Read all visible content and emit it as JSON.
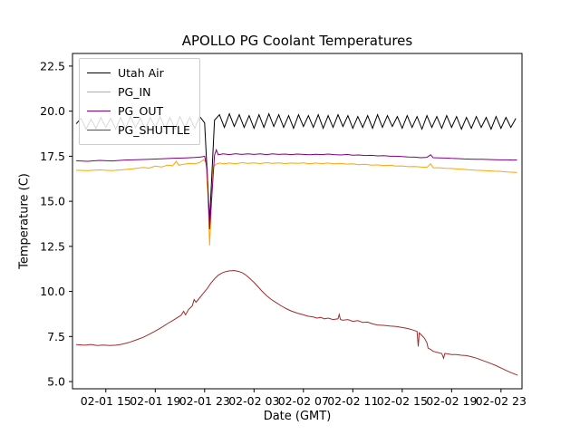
{
  "chart_data": {
    "type": "line",
    "title": "APOLLO PG Coolant Temperatures",
    "xlabel": "Date (GMT)",
    "ylabel": "Temperature (C)",
    "grid": false,
    "legend_position": "upper left",
    "x_unit": "hours since 02-01 13:00 GMT",
    "xlim": [
      -0.7,
      35.7
    ],
    "ylim": [
      4.6,
      23.2
    ],
    "yticks": [
      "5.0",
      "7.5",
      "10.0",
      "12.5",
      "15.0",
      "17.5",
      "20.0",
      "22.5"
    ],
    "ytick_values": [
      5.0,
      7.5,
      10.0,
      12.5,
      15.0,
      17.5,
      20.0,
      22.5
    ],
    "xtick_values": [
      2,
      6,
      10,
      14,
      18,
      22,
      26,
      30,
      34
    ],
    "xtick_labels": [
      "02-01 15",
      "02-01 19",
      "02-01 23",
      "02-02 03",
      "02-02 07",
      "02-02 11",
      "02-02 15",
      "02-02 19",
      "02-02 23"
    ],
    "series": [
      {
        "name": "Utah Air",
        "color": "#000000",
        "t0": -0.4,
        "dt": 0.4,
        "y": [
          19.3,
          19.6,
          19.0,
          19.55,
          19.05,
          19.65,
          19.1,
          19.6,
          19.0,
          19.65,
          19.05,
          19.7,
          19.1,
          19.6,
          19.0,
          19.65,
          19.1,
          19.7,
          19.05,
          19.65,
          19.0,
          19.7,
          19.1,
          19.65,
          19.05,
          19.7,
          19.35,
          13.9,
          19.5,
          19.8,
          19.1,
          19.85,
          19.15,
          19.8,
          19.1,
          19.75,
          19.05,
          19.8,
          19.1,
          19.85,
          19.15,
          19.8,
          19.1,
          19.75,
          19.05,
          19.8,
          19.15,
          19.75,
          19.1,
          19.8,
          19.05,
          19.75,
          19.1,
          19.8,
          19.15,
          19.75,
          19.05,
          19.7,
          19.1,
          19.75,
          19.05,
          19.8,
          19.1,
          19.75,
          19.15,
          19.7,
          19.05,
          19.75,
          19.1,
          19.7,
          19.0,
          19.75,
          19.1,
          19.7,
          19.05,
          19.75,
          19.1,
          19.7,
          19.0,
          19.65,
          19.05,
          19.7,
          19.1,
          19.65,
          19.0,
          19.7,
          19.05,
          19.65,
          19.1,
          19.6
        ]
      },
      {
        "name": "PG_IN",
        "color": "#ffa500",
        "points": [
          [
            -0.4,
            16.72
          ],
          [
            0.5,
            16.7
          ],
          [
            1.5,
            16.74
          ],
          [
            2.5,
            16.7
          ],
          [
            3.5,
            16.76
          ],
          [
            4.2,
            16.8
          ],
          [
            5,
            16.88
          ],
          [
            5.5,
            16.84
          ],
          [
            6,
            16.95
          ],
          [
            6.5,
            16.9
          ],
          [
            7,
            17.0
          ],
          [
            7.4,
            16.97
          ],
          [
            7.7,
            17.22
          ],
          [
            7.9,
            17.0
          ],
          [
            8.3,
            17.05
          ],
          [
            8.8,
            17.1
          ],
          [
            9.2,
            17.08
          ],
          [
            9.6,
            17.15
          ],
          [
            9.9,
            17.3
          ],
          [
            10.1,
            17.2
          ],
          [
            10.25,
            15.5
          ],
          [
            10.4,
            12.55
          ],
          [
            10.55,
            14.8
          ],
          [
            10.7,
            16.9
          ],
          [
            10.9,
            17.05
          ],
          [
            11.2,
            17.12
          ],
          [
            11.6,
            17.08
          ],
          [
            12,
            17.12
          ],
          [
            12.5,
            17.08
          ],
          [
            13,
            17.14
          ],
          [
            13.5,
            17.1
          ],
          [
            14,
            17.13
          ],
          [
            14.5,
            17.09
          ],
          [
            15,
            17.14
          ],
          [
            15.5,
            17.1
          ],
          [
            16,
            17.13
          ],
          [
            16.5,
            17.09
          ],
          [
            17,
            17.12
          ],
          [
            17.5,
            17.1
          ],
          [
            18,
            17.13
          ],
          [
            18.5,
            17.08
          ],
          [
            19,
            17.12
          ],
          [
            19.5,
            17.09
          ],
          [
            20,
            17.12
          ],
          [
            20.5,
            17.08
          ],
          [
            21,
            17.1
          ],
          [
            21.5,
            17.06
          ],
          [
            22,
            17.08
          ],
          [
            22.5,
            17.03
          ],
          [
            23,
            17.05
          ],
          [
            23.5,
            17.0
          ],
          [
            24,
            17.02
          ],
          [
            24.5,
            16.98
          ],
          [
            25,
            17.0
          ],
          [
            25.5,
            16.95
          ],
          [
            26,
            16.96
          ],
          [
            26.5,
            16.92
          ],
          [
            27,
            16.93
          ],
          [
            27.5,
            16.9
          ],
          [
            28,
            16.88
          ],
          [
            28.3,
            17.08
          ],
          [
            28.5,
            16.86
          ],
          [
            29,
            16.86
          ],
          [
            29.5,
            16.83
          ],
          [
            30,
            16.82
          ],
          [
            30.5,
            16.79
          ],
          [
            31,
            16.77
          ],
          [
            31.5,
            16.74
          ],
          [
            32,
            16.72
          ],
          [
            32.5,
            16.71
          ],
          [
            33,
            16.69
          ],
          [
            33.5,
            16.67
          ],
          [
            34,
            16.66
          ],
          [
            34.5,
            16.63
          ],
          [
            35,
            16.61
          ],
          [
            35.3,
            16.6
          ]
        ]
      },
      {
        "name": "PG_OUT",
        "color": "#800080",
        "points": [
          [
            -0.4,
            17.25
          ],
          [
            0.5,
            17.22
          ],
          [
            1.5,
            17.27
          ],
          [
            2.5,
            17.24
          ],
          [
            3.5,
            17.29
          ],
          [
            4.5,
            17.31
          ],
          [
            5.5,
            17.33
          ],
          [
            6.5,
            17.36
          ],
          [
            7.5,
            17.39
          ],
          [
            8.5,
            17.41
          ],
          [
            9.2,
            17.43
          ],
          [
            9.7,
            17.46
          ],
          [
            10.0,
            17.5
          ],
          [
            10.2,
            16.8
          ],
          [
            10.4,
            13.45
          ],
          [
            10.6,
            15.5
          ],
          [
            10.8,
            17.55
          ],
          [
            10.95,
            17.85
          ],
          [
            11.1,
            17.58
          ],
          [
            11.5,
            17.63
          ],
          [
            12,
            17.59
          ],
          [
            12.5,
            17.64
          ],
          [
            13,
            17.6
          ],
          [
            13.5,
            17.63
          ],
          [
            14,
            17.6
          ],
          [
            14.5,
            17.63
          ],
          [
            15,
            17.59
          ],
          [
            15.5,
            17.63
          ],
          [
            16,
            17.6
          ],
          [
            16.5,
            17.62
          ],
          [
            17,
            17.59
          ],
          [
            17.5,
            17.62
          ],
          [
            18,
            17.6
          ],
          [
            18.5,
            17.58
          ],
          [
            19,
            17.61
          ],
          [
            19.5,
            17.59
          ],
          [
            20,
            17.62
          ],
          [
            20.5,
            17.59
          ],
          [
            21,
            17.57
          ],
          [
            21.5,
            17.6
          ],
          [
            22,
            17.56
          ],
          [
            22.5,
            17.57
          ],
          [
            23,
            17.54
          ],
          [
            23.5,
            17.55
          ],
          [
            24,
            17.52
          ],
          [
            24.5,
            17.53
          ],
          [
            25,
            17.5
          ],
          [
            25.5,
            17.5
          ],
          [
            26,
            17.48
          ],
          [
            26.5,
            17.46
          ],
          [
            27,
            17.45
          ],
          [
            27.5,
            17.42
          ],
          [
            28,
            17.44
          ],
          [
            28.3,
            17.58
          ],
          [
            28.5,
            17.42
          ],
          [
            29,
            17.41
          ],
          [
            29.5,
            17.4
          ],
          [
            30,
            17.38
          ],
          [
            30.5,
            17.37
          ],
          [
            31,
            17.35
          ],
          [
            31.5,
            17.34
          ],
          [
            32,
            17.33
          ],
          [
            32.5,
            17.33
          ],
          [
            33,
            17.32
          ],
          [
            33.5,
            17.31
          ],
          [
            34,
            17.3
          ],
          [
            34.5,
            17.3
          ],
          [
            35,
            17.29
          ],
          [
            35.3,
            17.3
          ]
        ]
      },
      {
        "name": "PG_SHUTTLE",
        "color": "#a52a2a",
        "points": [
          [
            -0.4,
            7.05
          ],
          [
            0.3,
            7.02
          ],
          [
            0.8,
            7.06
          ],
          [
            1.3,
            7.0
          ],
          [
            1.8,
            7.03
          ],
          [
            2.3,
            7.0
          ],
          [
            2.8,
            7.02
          ],
          [
            3.2,
            7.06
          ],
          [
            3.6,
            7.12
          ],
          [
            4,
            7.2
          ],
          [
            4.5,
            7.32
          ],
          [
            5,
            7.45
          ],
          [
            5.5,
            7.62
          ],
          [
            6,
            7.8
          ],
          [
            6.5,
            8.0
          ],
          [
            7,
            8.22
          ],
          [
            7.4,
            8.38
          ],
          [
            7.8,
            8.55
          ],
          [
            8.1,
            8.68
          ],
          [
            8.3,
            8.9
          ],
          [
            8.45,
            8.7
          ],
          [
            8.7,
            9.0
          ],
          [
            9,
            9.2
          ],
          [
            9.15,
            9.55
          ],
          [
            9.3,
            9.4
          ],
          [
            9.6,
            9.65
          ],
          [
            9.9,
            9.9
          ],
          [
            10.2,
            10.15
          ],
          [
            10.5,
            10.45
          ],
          [
            10.8,
            10.7
          ],
          [
            11.1,
            10.9
          ],
          [
            11.4,
            11.02
          ],
          [
            11.7,
            11.1
          ],
          [
            12,
            11.14
          ],
          [
            12.4,
            11.16
          ],
          [
            12.8,
            11.1
          ],
          [
            13.1,
            11.02
          ],
          [
            13.4,
            10.88
          ],
          [
            13.7,
            10.7
          ],
          [
            14,
            10.5
          ],
          [
            14.3,
            10.28
          ],
          [
            14.6,
            10.05
          ],
          [
            15,
            9.78
          ],
          [
            15.4,
            9.55
          ],
          [
            15.8,
            9.38
          ],
          [
            16.2,
            9.2
          ],
          [
            16.6,
            9.05
          ],
          [
            17,
            8.92
          ],
          [
            17.5,
            8.8
          ],
          [
            18,
            8.7
          ],
          [
            18.4,
            8.62
          ],
          [
            18.8,
            8.58
          ],
          [
            19.1,
            8.52
          ],
          [
            19.4,
            8.56
          ],
          [
            19.7,
            8.48
          ],
          [
            20,
            8.52
          ],
          [
            20.4,
            8.44
          ],
          [
            20.8,
            8.48
          ],
          [
            20.9,
            8.72
          ],
          [
            21.0,
            8.44
          ],
          [
            21.2,
            8.4
          ],
          [
            21.6,
            8.44
          ],
          [
            22,
            8.34
          ],
          [
            22.4,
            8.38
          ],
          [
            22.8,
            8.28
          ],
          [
            23.2,
            8.3
          ],
          [
            23.6,
            8.2
          ],
          [
            24,
            8.14
          ],
          [
            24.5,
            8.12
          ],
          [
            25,
            8.08
          ],
          [
            25.5,
            8.06
          ],
          [
            26,
            8.0
          ],
          [
            26.4,
            7.95
          ],
          [
            26.8,
            7.88
          ],
          [
            27.2,
            7.78
          ],
          [
            27.3,
            6.95
          ],
          [
            27.38,
            7.7
          ],
          [
            27.5,
            7.62
          ],
          [
            27.8,
            7.4
          ],
          [
            28,
            7.15
          ],
          [
            28.1,
            6.85
          ],
          [
            28.3,
            6.78
          ],
          [
            28.5,
            6.68
          ],
          [
            28.8,
            6.62
          ],
          [
            29.2,
            6.56
          ],
          [
            29.35,
            6.3
          ],
          [
            29.45,
            6.56
          ],
          [
            29.6,
            6.55
          ],
          [
            30,
            6.5
          ],
          [
            30.4,
            6.5
          ],
          [
            30.8,
            6.46
          ],
          [
            31.2,
            6.44
          ],
          [
            31.6,
            6.38
          ],
          [
            32,
            6.3
          ],
          [
            32.4,
            6.2
          ],
          [
            32.8,
            6.1
          ],
          [
            33.2,
            6.0
          ],
          [
            33.6,
            5.88
          ],
          [
            34,
            5.75
          ],
          [
            34.4,
            5.62
          ],
          [
            34.8,
            5.5
          ],
          [
            35.1,
            5.42
          ],
          [
            35.35,
            5.35
          ]
        ]
      }
    ]
  }
}
